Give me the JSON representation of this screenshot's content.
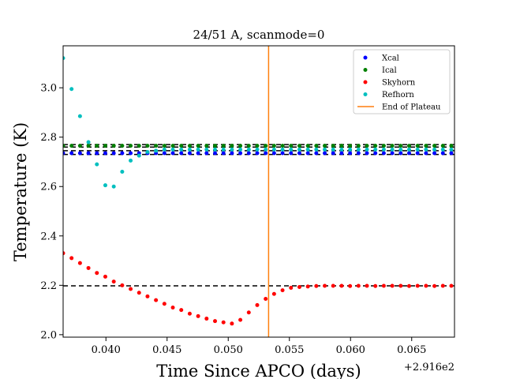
{
  "chart_data": {
    "type": "scatter",
    "title": "24/51 A, scanmode=0",
    "xlabel": "Time Since APCO (days)",
    "ylabel": "Temperature (K)",
    "x_offset_label": "+2.916e2",
    "xlim": [
      0.0365,
      0.0685
    ],
    "ylim": [
      1.99,
      3.17
    ],
    "xticks": [
      0.04,
      0.045,
      0.05,
      0.055,
      0.06,
      0.065
    ],
    "xtick_labels": [
      "0.040",
      "0.045",
      "0.050",
      "0.055",
      "0.060",
      "0.065"
    ],
    "yticks": [
      2.0,
      2.2,
      2.4,
      2.6,
      2.8,
      3.0
    ],
    "ytick_labels": [
      "2.0",
      "2.2",
      "2.4",
      "2.6",
      "2.8",
      "3.0"
    ],
    "legend_position": "top-right",
    "x": [
      0.0365,
      0.03719,
      0.03788,
      0.03857,
      0.03926,
      0.03995,
      0.04064,
      0.04133,
      0.04202,
      0.04271,
      0.0434,
      0.04409,
      0.04478,
      0.04547,
      0.04616,
      0.04685,
      0.04754,
      0.04823,
      0.04892,
      0.04961,
      0.0503,
      0.05099,
      0.05168,
      0.05237,
      0.05306,
      0.05375,
      0.05444,
      0.05513,
      0.05582,
      0.05651,
      0.0572,
      0.05789,
      0.05858,
      0.05927,
      0.05996,
      0.06065,
      0.06134,
      0.06203,
      0.06272,
      0.06341,
      0.0641,
      0.06479,
      0.06548,
      0.06617,
      0.06686,
      0.06755,
      0.06824
    ],
    "series": [
      {
        "name": "Xcal",
        "color": "#0000ff",
        "values": [
          2.735,
          2.735,
          2.735,
          2.735,
          2.735,
          2.735,
          2.735,
          2.735,
          2.735,
          2.735,
          2.735,
          2.735,
          2.735,
          2.735,
          2.735,
          2.735,
          2.735,
          2.735,
          2.735,
          2.735,
          2.735,
          2.735,
          2.735,
          2.735,
          2.735,
          2.735,
          2.735,
          2.735,
          2.735,
          2.735,
          2.735,
          2.735,
          2.735,
          2.735,
          2.735,
          2.735,
          2.735,
          2.735,
          2.735,
          2.735,
          2.735,
          2.735,
          2.735,
          2.735,
          2.735,
          2.735,
          2.735
        ]
      },
      {
        "name": "Ical",
        "color": "#008000",
        "values": [
          2.765,
          2.765,
          2.765,
          2.765,
          2.765,
          2.765,
          2.765,
          2.765,
          2.765,
          2.765,
          2.765,
          2.765,
          2.765,
          2.765,
          2.765,
          2.765,
          2.765,
          2.765,
          2.765,
          2.765,
          2.765,
          2.765,
          2.765,
          2.765,
          2.765,
          2.765,
          2.765,
          2.765,
          2.765,
          2.765,
          2.765,
          2.765,
          2.765,
          2.765,
          2.765,
          2.765,
          2.765,
          2.765,
          2.765,
          2.765,
          2.765,
          2.765,
          2.765,
          2.765,
          2.765,
          2.765,
          2.765
        ]
      },
      {
        "name": "Skyhorn",
        "color": "#ff0000",
        "values": [
          2.33,
          2.31,
          2.29,
          2.27,
          2.25,
          2.235,
          2.215,
          2.2,
          2.185,
          2.17,
          2.155,
          2.14,
          2.125,
          2.11,
          2.1,
          2.085,
          2.075,
          2.065,
          2.055,
          2.05,
          2.045,
          2.06,
          2.09,
          2.12,
          2.145,
          2.165,
          2.18,
          2.19,
          2.193,
          2.195,
          2.197,
          2.198,
          2.198,
          2.198,
          2.197,
          2.198,
          2.198,
          2.197,
          2.198,
          2.198,
          2.198,
          2.197,
          2.198,
          2.198,
          2.197,
          2.198,
          2.198
        ]
      },
      {
        "name": "Refhorn",
        "color": "#00bfbf",
        "values": [
          3.12,
          2.995,
          2.885,
          2.78,
          2.69,
          2.605,
          2.6,
          2.66,
          2.705,
          2.725,
          2.74,
          2.745,
          2.75,
          2.75,
          2.75,
          2.75,
          2.75,
          2.75,
          2.75,
          2.75,
          2.75,
          2.75,
          2.75,
          2.75,
          2.75,
          2.75,
          2.75,
          2.75,
          2.75,
          2.75,
          2.75,
          2.75,
          2.75,
          2.75,
          2.75,
          2.75,
          2.75,
          2.75,
          2.75,
          2.75,
          2.75,
          2.75,
          2.75,
          2.75,
          2.75,
          2.75,
          2.75
        ]
      }
    ],
    "reference_lines": [
      {
        "y": 2.73,
        "color": "#000000"
      },
      {
        "y": 2.745,
        "color": "#000000"
      },
      {
        "y": 2.76,
        "color": "#000000"
      },
      {
        "y": 2.77,
        "color": "#000000"
      },
      {
        "y": 2.198,
        "color": "#000000"
      }
    ],
    "vertical_line": {
      "name": "End of Plateau",
      "x": 0.0533,
      "color": "#ff7f0e"
    },
    "grid": false
  }
}
